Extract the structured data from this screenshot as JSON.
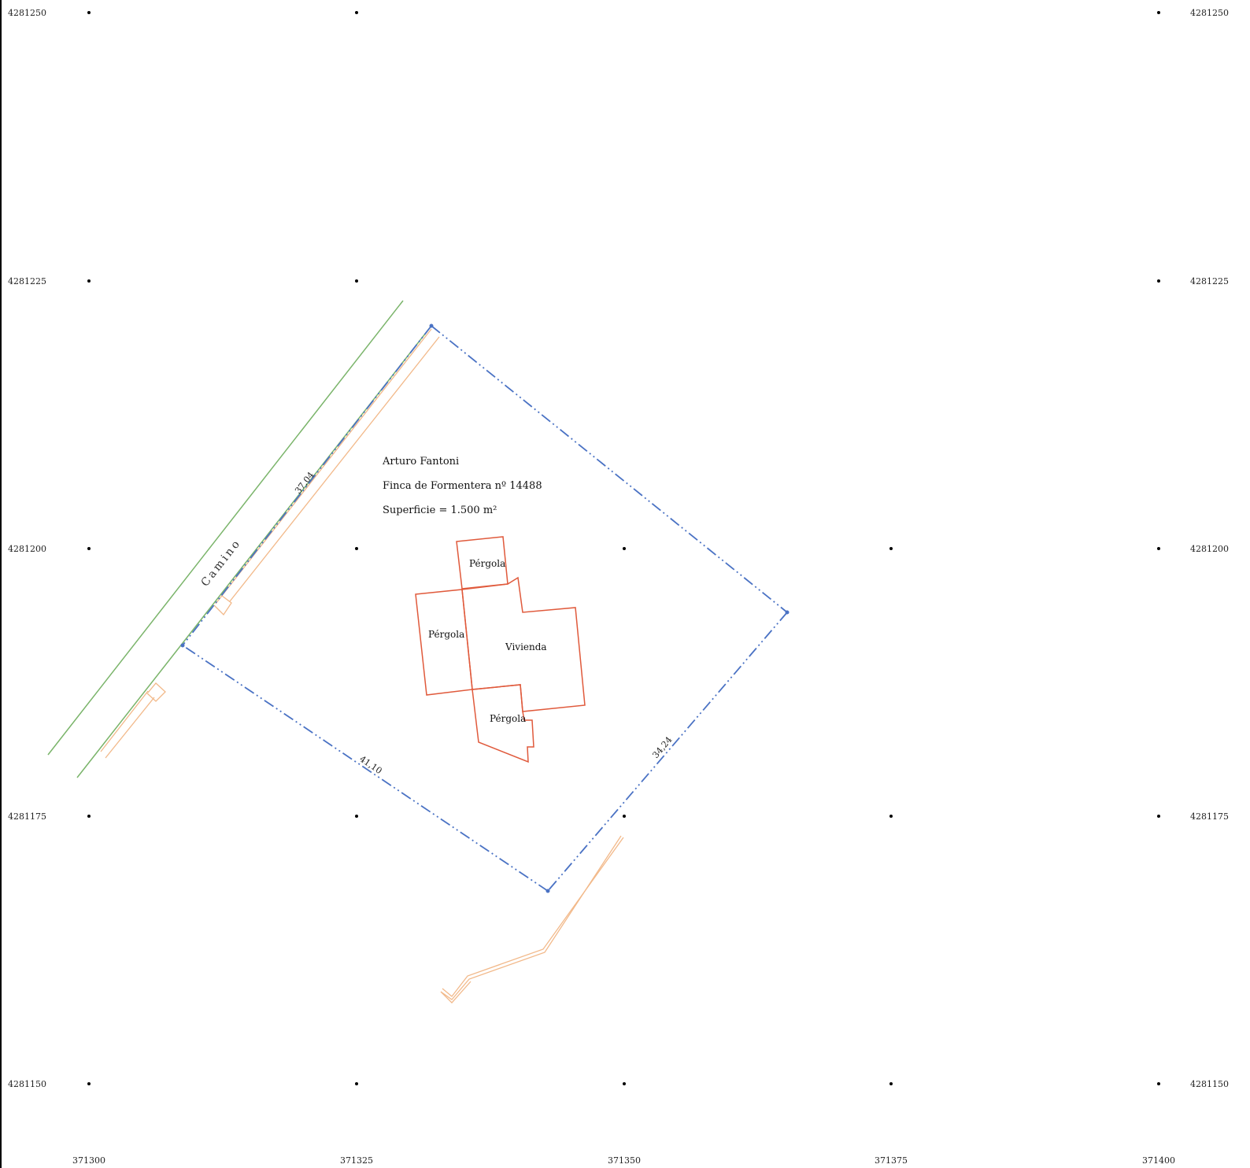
{
  "map": {
    "grid": {
      "easting_labels": [
        "371300",
        "371325",
        "371350",
        "371375",
        "371400"
      ],
      "northing_labels": [
        "4281250",
        "4281225",
        "4281200",
        "4281175",
        "4281150"
      ]
    },
    "info": {
      "owner": "Arturo Fantoni",
      "finca": "Finca de Formentera nº 14488",
      "superficie": "Superficie = 1.500 m²"
    },
    "road_label": "Camino",
    "buildings": {
      "pergola_top": "Pérgola",
      "pergola_left": "Pérgola",
      "vivienda": "Vivienda",
      "pergola_bottom": "Pérgola"
    },
    "dimensions": {
      "northwest": "37,04",
      "southwest": "41,10",
      "southeast": "34,24"
    },
    "colors": {
      "parcel": "#4a72c4",
      "road": "#7ab46a",
      "fence": "#f2b98a",
      "building": "#e05a3c"
    }
  }
}
